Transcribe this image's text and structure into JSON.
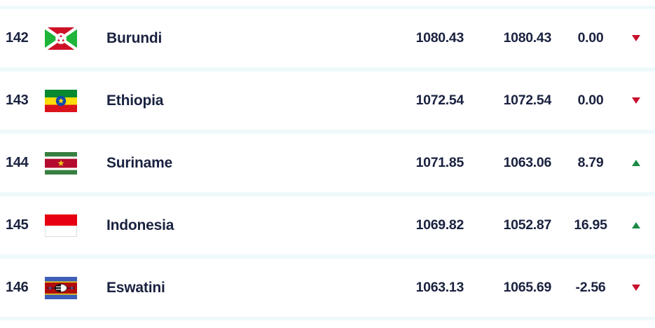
{
  "table": {
    "rows": [
      {
        "rank": "142",
        "country": "Burundi",
        "flag": "burundi-flag",
        "points": "1080.43",
        "previous_points": "1080.43",
        "change": "0.00",
        "trend": "down"
      },
      {
        "rank": "143",
        "country": "Ethiopia",
        "flag": "ethiopia-flag",
        "points": "1072.54",
        "previous_points": "1072.54",
        "change": "0.00",
        "trend": "down"
      },
      {
        "rank": "144",
        "country": "Suriname",
        "flag": "suriname-flag",
        "points": "1071.85",
        "previous_points": "1063.06",
        "change": "8.79",
        "trend": "up"
      },
      {
        "rank": "145",
        "country": "Indonesia",
        "flag": "indonesia-flag",
        "points": "1069.82",
        "previous_points": "1052.87",
        "change": "16.95",
        "trend": "up"
      },
      {
        "rank": "146",
        "country": "Eswatini",
        "flag": "eswatini-flag",
        "points": "1063.13",
        "previous_points": "1065.69",
        "change": "-2.56",
        "trend": "down"
      }
    ],
    "colors": {
      "text": "#1a2240",
      "trend_up": "#1b8a47",
      "trend_down": "#c8102e",
      "row_bg": "#ffffff",
      "page_bg": "#eff9fc"
    }
  }
}
